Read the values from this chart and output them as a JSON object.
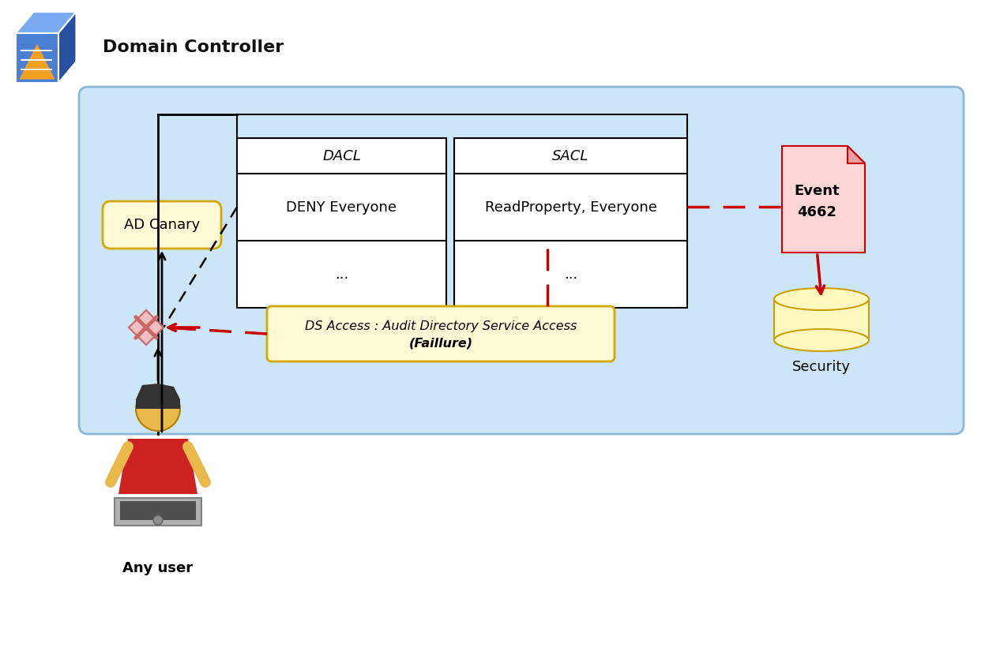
{
  "title": "Domain Controller",
  "bg_color": "#cde6f7",
  "outer_bg": "#ffffff",
  "dacl_label": "DACL",
  "sacl_label": "SACL",
  "deny_box_text1": "DENY Everyone",
  "deny_box_text2": "...",
  "sacl_box_text1": "ReadProperty, Everyone",
  "sacl_box_text2": "...",
  "ad_canary_text": "AD Canary",
  "ds_access_text1": "DS Access : Audit Directory Service Access",
  "ds_access_text2": "(Faillure)",
  "event_text1": "Event",
  "event_text2": "4662",
  "security_text": "Security",
  "any_user_text": "Any user",
  "ad_canary_bg": "#fff9d6",
  "ad_canary_border": "#d4a800",
  "ds_access_bg": "#fff9d6",
  "ds_access_border": "#d4a800",
  "event_bg": "#ffd6d6",
  "event_border": "#cc0000",
  "security_bg": "#fff9c0",
  "security_border": "#c8a000",
  "red": "#cc0000",
  "black": "#000000",
  "x_bg": "#f0c0c0",
  "x_color": "#cc6666"
}
